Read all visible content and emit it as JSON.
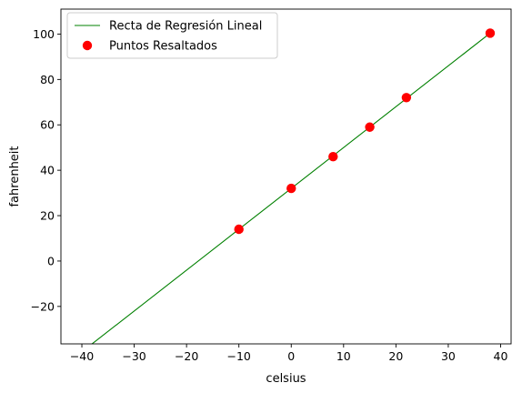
{
  "chart_data": {
    "type": "line",
    "title": "",
    "xlabel": "celsius",
    "ylabel": "fahrenheit",
    "xlim": [
      -44,
      42
    ],
    "ylim": [
      -36.5,
      111
    ],
    "xticks": [
      -40,
      -30,
      -20,
      -10,
      0,
      10,
      20,
      30,
      40
    ],
    "yticks": [
      -20,
      0,
      20,
      40,
      60,
      80,
      100
    ],
    "xtick_labels": [
      "−40",
      "−30",
      "−20",
      "−10",
      "0",
      "10",
      "20",
      "30",
      "40"
    ],
    "ytick_labels": [
      "−20",
      "0",
      "20",
      "40",
      "60",
      "80",
      "100"
    ],
    "grid": false,
    "legend_position": "top-left",
    "series": [
      {
        "name": "Recta de Regresión Lineal",
        "kind": "line",
        "color": "#008000",
        "x": [
          -44,
          38
        ],
        "y": [
          -47.2,
          100.4
        ]
      },
      {
        "name": "Puntos Resaltados",
        "kind": "scatter",
        "color": "#ff0000",
        "x": [
          -10,
          0,
          8,
          15,
          22,
          38
        ],
        "y": [
          14,
          32,
          46,
          59,
          72,
          100.4
        ]
      }
    ]
  }
}
